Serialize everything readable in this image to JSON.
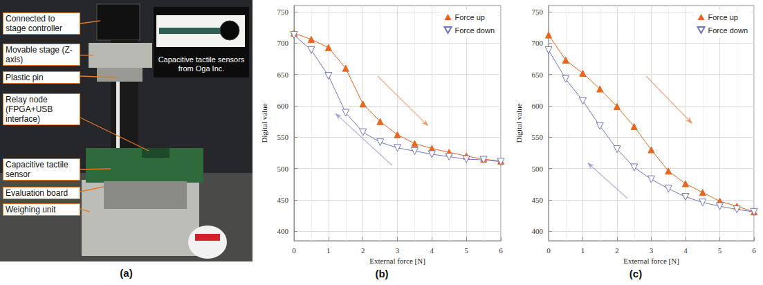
{
  "photo": {
    "panel": "(a)",
    "labels": [
      "Connected to stage controller",
      "Movable stage (Z-axis)",
      "Plastic pin",
      "Relay node (FPGA+USB interface)",
      "Capacitive tactile sensor",
      "Evaluation board",
      "Weighing unit"
    ],
    "inset_caption": "Capacitive tactile sensors from Oga Inc."
  },
  "chart_data": [
    {
      "panel": "(b)",
      "type": "line",
      "xlabel": "External force [N]",
      "ylabel": "Digital value",
      "x": [
        0,
        0.5,
        1,
        1.5,
        2,
        2.5,
        3,
        3.5,
        4,
        4.5,
        5,
        5.5,
        6
      ],
      "xlim": [
        0,
        6
      ],
      "xticks": [
        0,
        1,
        2,
        3,
        4,
        5,
        6
      ],
      "ylim": [
        385,
        760
      ],
      "yticks": [
        400,
        450,
        500,
        550,
        600,
        650,
        700,
        750
      ],
      "grid": true,
      "legend": "upper right",
      "series": [
        {
          "name": "Force up",
          "color": "#e8661e",
          "marker": "triangle",
          "values": [
            716,
            706,
            693,
            660,
            603,
            575,
            554,
            540,
            532,
            526,
            520,
            515,
            512
          ]
        },
        {
          "name": "Force down",
          "color": "#6f76c2",
          "marker": "triangle-down",
          "values": [
            713,
            689,
            648,
            589,
            558,
            542,
            533,
            528,
            523,
            519,
            515,
            514,
            511
          ]
        }
      ]
    },
    {
      "panel": "(c)",
      "type": "line",
      "xlabel": "External force [N]",
      "ylabel": "Digital value",
      "x": [
        0,
        0.5,
        1,
        1.5,
        2,
        2.5,
        3,
        3.5,
        4,
        4.5,
        5,
        5.5,
        6
      ],
      "xlim": [
        0,
        6
      ],
      "xticks": [
        0,
        1,
        2,
        3,
        4,
        5,
        6
      ],
      "ylim": [
        385,
        760
      ],
      "yticks": [
        400,
        450,
        500,
        550,
        600,
        650,
        700,
        750
      ],
      "grid": true,
      "legend": "upper right",
      "series": [
        {
          "name": "Force up",
          "color": "#e8661e",
          "marker": "triangle",
          "values": [
            713,
            673,
            652,
            627,
            599,
            567,
            530,
            496,
            476,
            462,
            448,
            440,
            431
          ]
        },
        {
          "name": "Force down",
          "color": "#6f76c2",
          "marker": "triangle-down",
          "values": [
            689,
            643,
            608,
            568,
            531,
            502,
            483,
            468,
            455,
            446,
            440,
            435,
            431
          ]
        }
      ]
    }
  ]
}
